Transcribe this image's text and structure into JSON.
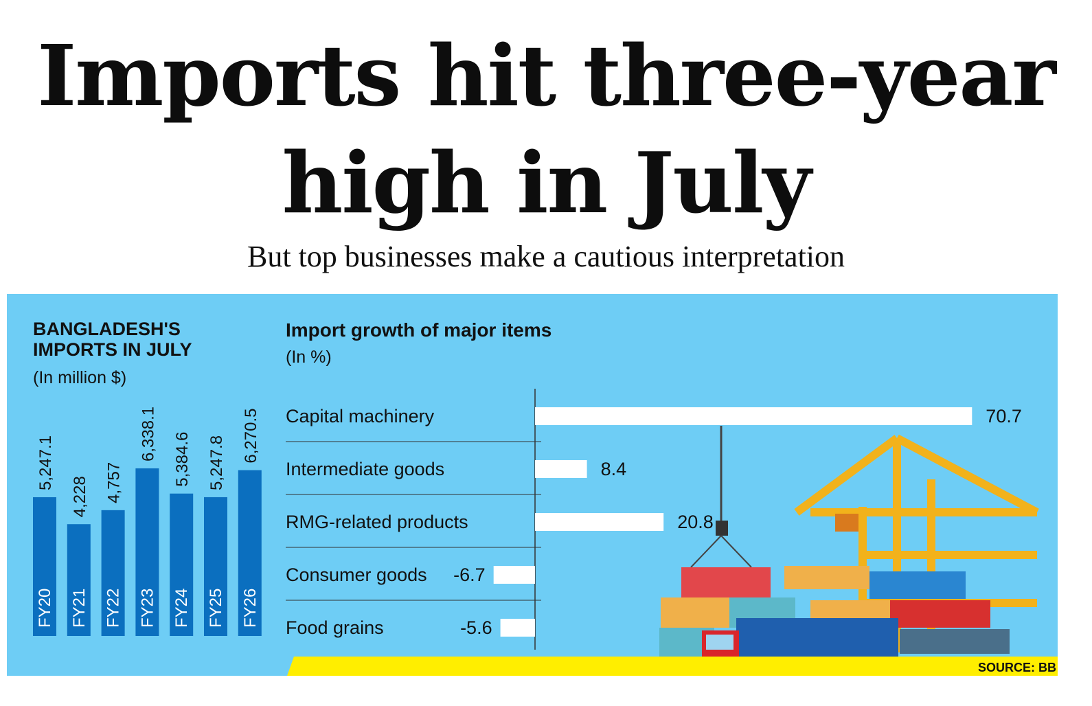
{
  "headline": {
    "line1": "Imports hit three-year",
    "line2": "high in July",
    "subtitle": "But top businesses make a cautious interpretation"
  },
  "colors": {
    "panel": "#6ecdf5",
    "bar_blue": "#0b6fbf",
    "bar_white": "#ffffff",
    "strip_yellow": "#ffee00"
  },
  "source": "SOURCE: BB",
  "chart_data": [
    {
      "type": "bar",
      "title": "BANGLADESH'S IMPORTS IN JULY",
      "subtitle": "(In million $)",
      "categories": [
        "FY20",
        "FY21",
        "FY22",
        "FY23",
        "FY24",
        "FY25",
        "FY26"
      ],
      "values": [
        5247.1,
        4228,
        4757,
        6338.1,
        5384.6,
        5247.8,
        6270.5
      ],
      "value_labels": [
        "5,247.1",
        "4,228",
        "4,757",
        "6,338.1",
        "5,384.6",
        "5,247.8",
        "6,270.5"
      ],
      "orientation": "vertical",
      "grid": false,
      "legend": "none"
    },
    {
      "type": "bar",
      "title": "Import growth of major items",
      "subtitle": "(In %)",
      "categories": [
        "Capital machinery",
        "Intermediate goods",
        "RMG-related products",
        "Consumer goods",
        "Food grains"
      ],
      "values": [
        70.7,
        8.4,
        20.8,
        -6.7,
        -5.6
      ],
      "value_labels": [
        "70.7",
        "8.4",
        "20.8",
        "-6.7",
        "-5.6"
      ],
      "orientation": "horizontal",
      "grid": false,
      "legend": "none"
    }
  ]
}
